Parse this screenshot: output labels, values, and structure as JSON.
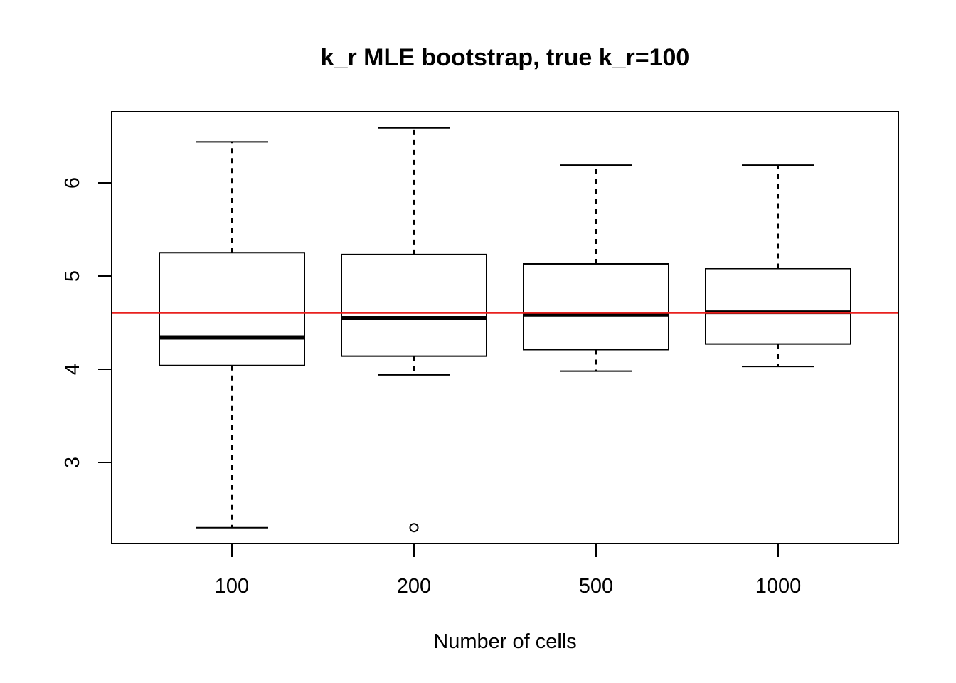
{
  "chart_data": {
    "type": "boxplot",
    "title": "k_r MLE bootstrap, true k_r=100",
    "xlabel": "Number of cells",
    "ylabel": "",
    "ylim": [
      2.2,
      6.8
    ],
    "y_ticks": [
      "3",
      "4",
      "5",
      "6"
    ],
    "categories": [
      "100",
      "200",
      "500",
      "1000"
    ],
    "boxes": [
      {
        "category": "100",
        "whisker_low": 2.3,
        "q1": 4.04,
        "median": 4.34,
        "q3": 5.25,
        "whisker_high": 6.44,
        "outliers": []
      },
      {
        "category": "200",
        "whisker_low": 3.94,
        "q1": 4.14,
        "median": 4.55,
        "q3": 5.23,
        "whisker_high": 6.59,
        "outliers": [
          2.3
        ]
      },
      {
        "category": "500",
        "whisker_low": 3.98,
        "q1": 4.21,
        "median": 4.59,
        "q3": 5.13,
        "whisker_high": 6.19,
        "outliers": []
      },
      {
        "category": "1000",
        "whisker_low": 4.03,
        "q1": 4.27,
        "median": 4.61,
        "q3": 5.08,
        "whisker_high": 6.19,
        "outliers": []
      }
    ],
    "reference_line": {
      "y": 4.605,
      "color": "#e8201e"
    },
    "box_color": "#000000",
    "grid": false,
    "legend": "none"
  }
}
